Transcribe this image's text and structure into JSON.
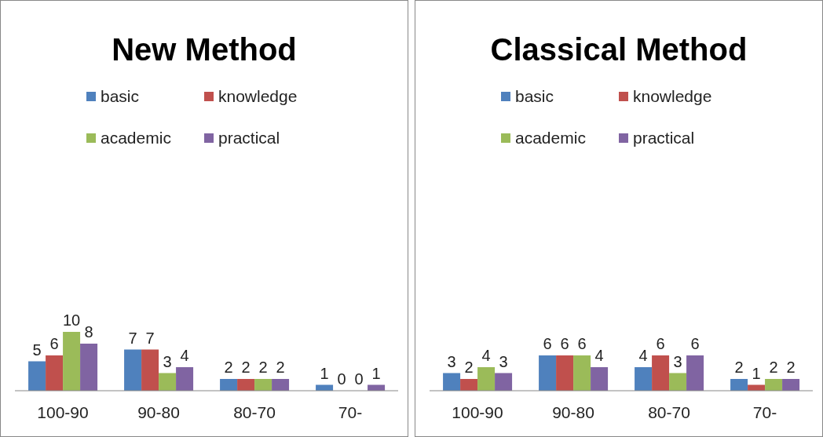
{
  "chart_data": [
    {
      "type": "bar",
      "title": "New Method",
      "categories": [
        "100-90",
        "90-80",
        "80-70",
        "70-"
      ],
      "series": [
        {
          "name": "basic",
          "color": "#4f81bd",
          "values": [
            5,
            7,
            2,
            1
          ]
        },
        {
          "name": "knowledge",
          "color": "#c0504d",
          "values": [
            6,
            7,
            2,
            0
          ]
        },
        {
          "name": "academic",
          "color": "#9bbb59",
          "values": [
            10,
            3,
            2,
            0
          ]
        },
        {
          "name": "practical",
          "color": "#8064a2",
          "values": [
            8,
            4,
            2,
            1
          ]
        }
      ],
      "data_labels": true,
      "legend": "top",
      "grid": false
    },
    {
      "type": "bar",
      "title": "Classical Method",
      "categories": [
        "100-90",
        "90-80",
        "80-70",
        "70-"
      ],
      "series": [
        {
          "name": "basic",
          "color": "#4f81bd",
          "values": [
            3,
            6,
            4,
            2
          ]
        },
        {
          "name": "knowledge",
          "color": "#c0504d",
          "values": [
            2,
            6,
            6,
            1
          ]
        },
        {
          "name": "academic",
          "color": "#9bbb59",
          "values": [
            4,
            6,
            3,
            2
          ]
        },
        {
          "name": "practical",
          "color": "#8064a2",
          "values": [
            3,
            4,
            6,
            2
          ]
        }
      ],
      "data_labels": true,
      "legend": "top",
      "grid": false
    }
  ]
}
